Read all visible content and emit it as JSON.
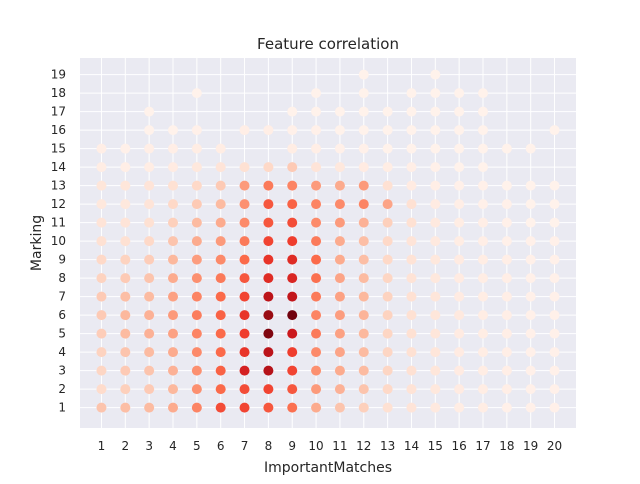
{
  "chart_data": {
    "type": "scatter",
    "title": "Feature correlation",
    "xlabel": "ImportantMatches",
    "ylabel": "Marking",
    "x_ticks": [
      1,
      2,
      3,
      4,
      5,
      6,
      7,
      8,
      9,
      10,
      11,
      12,
      13,
      14,
      15,
      16,
      17,
      18,
      19,
      20
    ],
    "y_ticks": [
      1,
      2,
      3,
      4,
      5,
      6,
      7,
      8,
      9,
      10,
      11,
      12,
      13,
      14,
      15,
      16,
      17,
      18,
      19
    ],
    "xlim": [
      0.1,
      20.9
    ],
    "ylim": [
      -0.1,
      19.9
    ],
    "grid": true,
    "colormap": "Reds",
    "colormap_stops": [
      "#fff5f0",
      "#fee0d2",
      "#fcbba1",
      "#fc9272",
      "#fb6a4a",
      "#ef3b2c",
      "#cb181d",
      "#a50f15",
      "#67000d"
    ],
    "background_color": "#eaeaf2",
    "intensity_note_values": "intensity 0-1 per cell, read from marker color",
    "columns": [
      {
        "x": 1,
        "y": [
          1,
          2,
          3,
          4,
          5,
          6,
          7,
          8,
          9,
          10,
          11,
          12,
          13,
          14,
          15
        ],
        "v": [
          0.22,
          0.14,
          0.16,
          0.17,
          0.19,
          0.2,
          0.2,
          0.17,
          0.15,
          0.12,
          0.1,
          0.08,
          0.09,
          0.05,
          0.04
        ]
      },
      {
        "x": 2,
        "y": [
          1,
          2,
          3,
          4,
          5,
          6,
          7,
          8,
          9,
          10,
          11,
          12,
          13,
          14,
          15
        ],
        "v": [
          0.24,
          0.18,
          0.2,
          0.22,
          0.25,
          0.26,
          0.24,
          0.2,
          0.17,
          0.12,
          0.1,
          0.08,
          0.09,
          0.04,
          0.03
        ]
      },
      {
        "x": 3,
        "y": [
          1,
          2,
          3,
          4,
          5,
          6,
          7,
          8,
          9,
          10,
          11,
          12,
          13,
          14,
          15,
          16,
          17
        ],
        "v": [
          0.25,
          0.2,
          0.22,
          0.25,
          0.28,
          0.28,
          0.25,
          0.22,
          0.19,
          0.15,
          0.12,
          0.1,
          0.1,
          0.05,
          0.04,
          0.02,
          0.02
        ]
      },
      {
        "x": 4,
        "y": [
          1,
          2,
          3,
          4,
          5,
          6,
          7,
          8,
          9,
          10,
          11,
          12,
          13,
          14,
          15,
          16
        ],
        "v": [
          0.3,
          0.26,
          0.28,
          0.3,
          0.33,
          0.35,
          0.33,
          0.3,
          0.26,
          0.22,
          0.18,
          0.15,
          0.12,
          0.06,
          0.04,
          0.02
        ]
      },
      {
        "x": 5,
        "y": [
          1,
          2,
          3,
          4,
          5,
          6,
          7,
          8,
          9,
          10,
          11,
          12,
          13,
          14,
          15,
          16,
          18
        ],
        "v": [
          0.42,
          0.38,
          0.38,
          0.4,
          0.42,
          0.44,
          0.42,
          0.38,
          0.34,
          0.3,
          0.25,
          0.2,
          0.15,
          0.08,
          0.05,
          0.03,
          0.02
        ]
      },
      {
        "x": 6,
        "y": [
          1,
          2,
          3,
          4,
          5,
          6,
          7,
          8,
          9,
          10,
          11,
          12,
          13,
          14,
          15
        ],
        "v": [
          0.58,
          0.5,
          0.52,
          0.5,
          0.5,
          0.52,
          0.5,
          0.45,
          0.4,
          0.35,
          0.3,
          0.25,
          0.2,
          0.1,
          0.05
        ]
      },
      {
        "x": 7,
        "y": [
          1,
          2,
          3,
          4,
          5,
          6,
          7,
          8,
          9,
          10,
          11,
          12,
          13,
          14,
          16
        ],
        "v": [
          0.6,
          0.58,
          0.72,
          0.65,
          0.62,
          0.65,
          0.6,
          0.55,
          0.5,
          0.45,
          0.4,
          0.38,
          0.35,
          0.12,
          0.04
        ]
      },
      {
        "x": 8,
        "y": [
          1,
          2,
          3,
          4,
          5,
          6,
          7,
          8,
          9,
          10,
          11,
          12,
          13,
          14,
          16
        ],
        "v": [
          0.55,
          0.6,
          0.82,
          0.8,
          0.95,
          0.9,
          0.8,
          0.68,
          0.65,
          0.6,
          0.55,
          0.55,
          0.45,
          0.15,
          0.04
        ]
      },
      {
        "x": 9,
        "y": [
          1,
          2,
          3,
          4,
          5,
          6,
          7,
          8,
          9,
          10,
          11,
          12,
          13,
          14,
          15,
          16,
          17
        ],
        "v": [
          0.48,
          0.55,
          0.6,
          0.62,
          0.75,
          0.98,
          0.78,
          0.7,
          0.68,
          0.62,
          0.58,
          0.52,
          0.42,
          0.2,
          0.05,
          0.03,
          0.02
        ]
      },
      {
        "x": 10,
        "y": [
          1,
          2,
          3,
          4,
          5,
          6,
          7,
          8,
          9,
          10,
          11,
          12,
          13,
          14,
          15,
          16,
          17,
          18
        ],
        "v": [
          0.3,
          0.35,
          0.38,
          0.4,
          0.45,
          0.42,
          0.45,
          0.48,
          0.5,
          0.45,
          0.4,
          0.42,
          0.35,
          0.1,
          0.04,
          0.03,
          0.02,
          0.02
        ]
      },
      {
        "x": 11,
        "y": [
          1,
          2,
          3,
          4,
          5,
          6,
          7,
          8,
          9,
          10,
          11,
          12,
          13,
          14,
          15,
          16,
          17
        ],
        "v": [
          0.22,
          0.28,
          0.3,
          0.32,
          0.33,
          0.34,
          0.33,
          0.32,
          0.3,
          0.3,
          0.35,
          0.4,
          0.3,
          0.08,
          0.03,
          0.02,
          0.02
        ]
      },
      {
        "x": 12,
        "y": [
          1,
          2,
          3,
          4,
          5,
          6,
          7,
          8,
          9,
          10,
          11,
          12,
          13,
          14,
          15,
          16,
          17,
          18,
          19
        ],
        "v": [
          0.18,
          0.22,
          0.25,
          0.25,
          0.26,
          0.27,
          0.26,
          0.25,
          0.24,
          0.24,
          0.28,
          0.42,
          0.35,
          0.06,
          0.03,
          0.02,
          0.02,
          0.02,
          0.02
        ]
      },
      {
        "x": 13,
        "y": [
          1,
          2,
          3,
          4,
          5,
          6,
          7,
          8,
          9,
          10,
          11,
          12,
          13,
          14,
          15,
          16,
          17
        ],
        "v": [
          0.12,
          0.15,
          0.16,
          0.16,
          0.16,
          0.17,
          0.17,
          0.16,
          0.15,
          0.15,
          0.18,
          0.32,
          0.12,
          0.05,
          0.02,
          0.02,
          0.02
        ]
      },
      {
        "x": 14,
        "y": [
          1,
          2,
          3,
          4,
          5,
          6,
          7,
          8,
          9,
          10,
          11,
          12,
          13,
          14,
          15,
          16,
          17,
          18
        ],
        "v": [
          0.1,
          0.11,
          0.12,
          0.12,
          0.12,
          0.12,
          0.12,
          0.11,
          0.11,
          0.1,
          0.12,
          0.12,
          0.06,
          0.04,
          0.02,
          0.02,
          0.02,
          0.02
        ]
      },
      {
        "x": 15,
        "y": [
          1,
          2,
          3,
          4,
          5,
          6,
          7,
          8,
          9,
          10,
          11,
          12,
          13,
          14,
          15,
          16,
          17,
          18,
          19
        ],
        "v": [
          0.07,
          0.08,
          0.09,
          0.09,
          0.09,
          0.09,
          0.09,
          0.08,
          0.08,
          0.07,
          0.07,
          0.06,
          0.04,
          0.03,
          0.02,
          0.02,
          0.02,
          0.02,
          0.02
        ]
      },
      {
        "x": 16,
        "y": [
          1,
          2,
          3,
          4,
          5,
          6,
          7,
          8,
          9,
          10,
          11,
          12,
          13,
          14,
          15,
          16,
          17,
          18
        ],
        "v": [
          0.05,
          0.06,
          0.06,
          0.06,
          0.06,
          0.07,
          0.06,
          0.06,
          0.06,
          0.05,
          0.05,
          0.04,
          0.03,
          0.02,
          0.02,
          0.02,
          0.02,
          0.02
        ]
      },
      {
        "x": 17,
        "y": [
          1,
          2,
          3,
          4,
          5,
          6,
          7,
          8,
          9,
          10,
          11,
          12,
          13,
          14,
          15,
          16,
          17,
          18
        ],
        "v": [
          0.05,
          0.05,
          0.05,
          0.05,
          0.05,
          0.05,
          0.05,
          0.05,
          0.05,
          0.04,
          0.04,
          0.03,
          0.03,
          0.02,
          0.02,
          0.02,
          0.02,
          0.02
        ]
      },
      {
        "x": 18,
        "y": [
          1,
          2,
          3,
          4,
          5,
          6,
          7,
          8,
          9,
          10,
          11,
          12,
          13,
          15
        ],
        "v": [
          0.03,
          0.04,
          0.04,
          0.04,
          0.04,
          0.04,
          0.04,
          0.04,
          0.04,
          0.03,
          0.03,
          0.03,
          0.02,
          0.02
        ]
      },
      {
        "x": 19,
        "y": [
          1,
          2,
          3,
          4,
          5,
          6,
          7,
          8,
          9,
          10,
          11,
          12,
          13,
          15
        ],
        "v": [
          0.03,
          0.03,
          0.03,
          0.03,
          0.03,
          0.03,
          0.03,
          0.03,
          0.03,
          0.03,
          0.02,
          0.02,
          0.02,
          0.02
        ]
      },
      {
        "x": 20,
        "y": [
          1,
          2,
          3,
          4,
          5,
          6,
          7,
          8,
          9,
          10,
          11,
          12,
          13,
          16
        ],
        "v": [
          0.03,
          0.03,
          0.03,
          0.03,
          0.03,
          0.03,
          0.03,
          0.03,
          0.03,
          0.03,
          0.02,
          0.02,
          0.02,
          0.02
        ]
      }
    ]
  }
}
